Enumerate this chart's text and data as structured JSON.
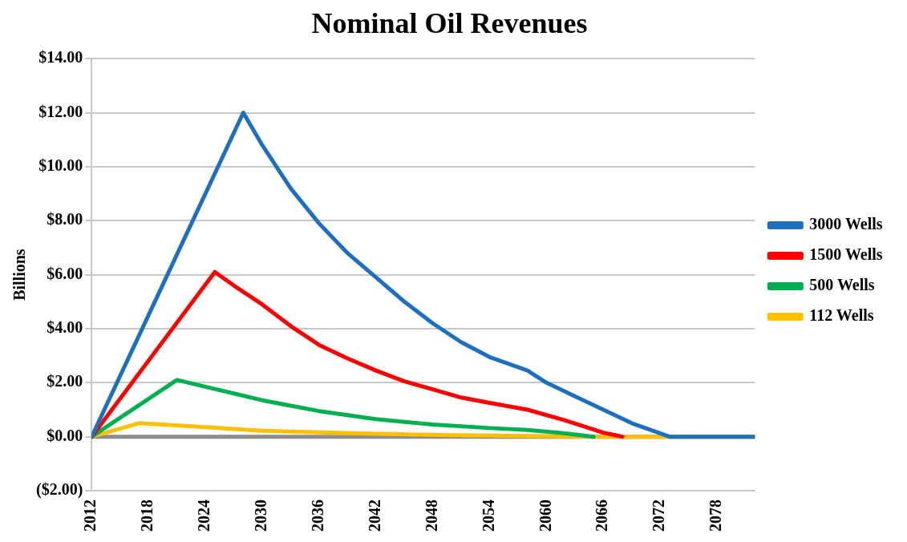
{
  "chart_data": {
    "type": "line",
    "title": "Nominal Oil Revenues",
    "ylabel": "Billions",
    "xlim": [
      2012,
      2082
    ],
    "xticks": [
      2012,
      2018,
      2024,
      2030,
      2036,
      2042,
      2048,
      2054,
      2060,
      2066,
      2072,
      2078
    ],
    "ylim": [
      -2,
      14
    ],
    "yticks": [
      {
        "value": -2,
        "label": "($2.00)"
      },
      {
        "value": 0,
        "label": "$0.00"
      },
      {
        "value": 2,
        "label": "$2.00"
      },
      {
        "value": 4,
        "label": "$4.00"
      },
      {
        "value": 6,
        "label": "$6.00"
      },
      {
        "value": 8,
        "label": "$8.00"
      },
      {
        "value": 10,
        "label": "$10.00"
      },
      {
        "value": 12,
        "label": "$12.00"
      },
      {
        "value": 14,
        "label": "$14.00"
      }
    ],
    "grid": "y",
    "legend": "right",
    "marker": "none",
    "line_style": "solid",
    "ref_lines": [
      {
        "axis": "y",
        "value": 0,
        "label": null,
        "color": "#8c8c8c"
      }
    ],
    "series": [
      {
        "name": "3000 Wells",
        "color": "#1f6fbf",
        "x": [
          2012,
          2016,
          2020,
          2024,
          2028,
          2030,
          2033,
          2036,
          2039,
          2042,
          2045,
          2048,
          2051,
          2054,
          2058,
          2060,
          2063,
          2066,
          2069,
          2073,
          2082
        ],
        "values": [
          0,
          3.0,
          6.0,
          9.0,
          12.0,
          10.8,
          9.2,
          7.9,
          6.8,
          5.9,
          5.0,
          4.2,
          3.5,
          2.95,
          2.45,
          2.0,
          1.5,
          1.0,
          0.5,
          0,
          0
        ]
      },
      {
        "name": "1500 Wells",
        "color": "#ff0000",
        "x": [
          2012,
          2025,
          2027,
          2030,
          2033,
          2036,
          2039,
          2042,
          2045,
          2048,
          2051,
          2054,
          2058,
          2062,
          2066,
          2068
        ],
        "values": [
          0,
          6.1,
          5.6,
          4.9,
          4.1,
          3.4,
          2.9,
          2.45,
          2.05,
          1.75,
          1.45,
          1.25,
          1.0,
          0.6,
          0.15,
          0
        ]
      },
      {
        "name": "500 Wells",
        "color": "#00b050",
        "x": [
          2012,
          2021,
          2024,
          2027,
          2030,
          2033,
          2036,
          2042,
          2048,
          2054,
          2058,
          2062,
          2065
        ],
        "values": [
          0,
          2.1,
          1.85,
          1.6,
          1.35,
          1.15,
          0.95,
          0.65,
          0.45,
          0.32,
          0.25,
          0.12,
          0
        ]
      },
      {
        "name": "112 Wells",
        "color": "#ffc000",
        "x": [
          2012,
          2017,
          2024,
          2030,
          2040,
          2050,
          2060,
          2066,
          2082
        ],
        "values": [
          0,
          0.5,
          0.35,
          0.22,
          0.12,
          0.06,
          0.02,
          0,
          0
        ]
      }
    ]
  }
}
